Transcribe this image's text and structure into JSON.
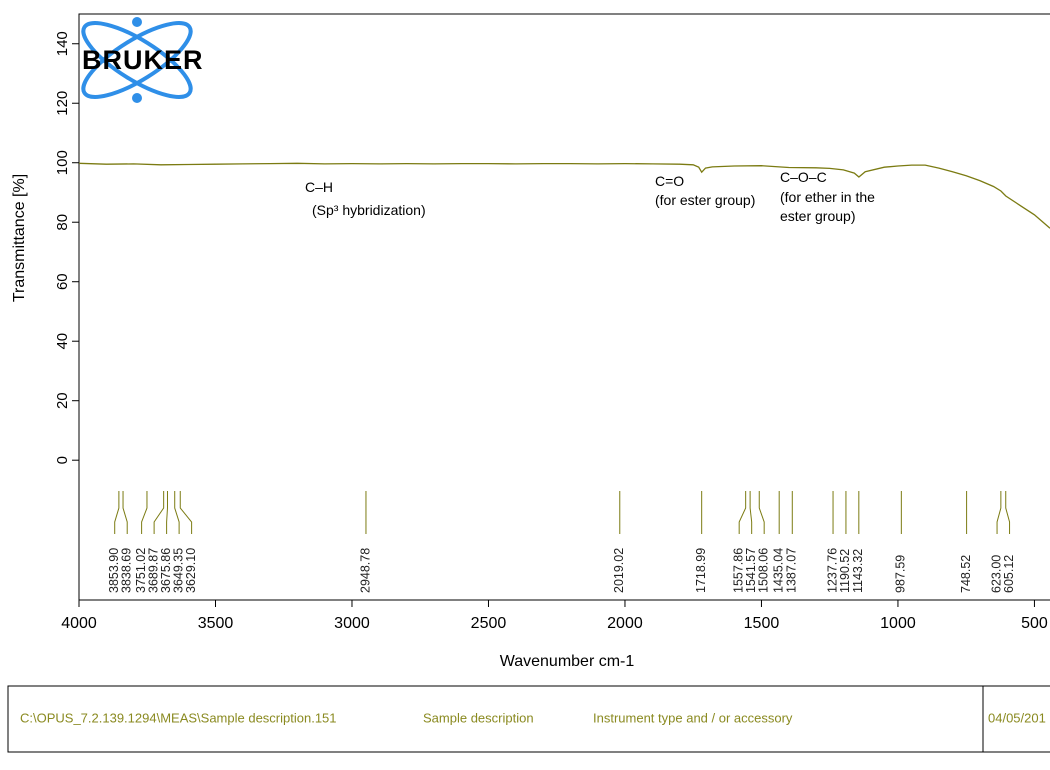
{
  "chart_data": {
    "type": "line",
    "xlabel": "Wavenumber cm-1",
    "ylabel": "Transmittance [%]",
    "color": "#7b7b12",
    "x": [
      4000,
      3900,
      3800,
      3700,
      3600,
      3500,
      3400,
      3300,
      3200,
      3100,
      3000,
      2900,
      2800,
      2700,
      2600,
      2500,
      2400,
      2300,
      2200,
      2100,
      2000,
      1900,
      1800,
      1750,
      1730,
      1719,
      1705,
      1680,
      1600,
      1500,
      1400,
      1300,
      1250,
      1200,
      1160,
      1143,
      1120,
      1050,
      1000,
      950,
      900,
      850,
      800,
      750,
      700,
      650,
      623,
      605,
      550,
      500,
      443
    ],
    "values": [
      99.8,
      99.5,
      99.6,
      99.3,
      99.4,
      99.5,
      99.6,
      99.7,
      99.8,
      99.6,
      99.7,
      99.6,
      99.7,
      99.6,
      99.7,
      99.7,
      99.6,
      99.7,
      99.7,
      99.6,
      99.7,
      99.6,
      99.5,
      99.3,
      98.5,
      96.8,
      98.2,
      98.6,
      98.9,
      99.0,
      98.4,
      98.3,
      98.1,
      97.6,
      96.5,
      95.2,
      97.0,
      98.5,
      98.9,
      99.2,
      99.2,
      98.2,
      97.0,
      95.6,
      94.0,
      92.0,
      90.5,
      88.8,
      85.5,
      82.5,
      78.0
    ],
    "xlim": [
      4000,
      443
    ],
    "ylim": [
      -47,
      150
    ],
    "xticks": [
      4000,
      3500,
      3000,
      2500,
      2000,
      1500,
      1000,
      500
    ],
    "yticks": [
      0,
      20,
      40,
      60,
      80,
      100,
      120,
      140
    ],
    "peaks": [
      {
        "value": 3853.9,
        "label": "3853.90"
      },
      {
        "value": 3838.69,
        "label": "3838.69"
      },
      {
        "value": 3751.02,
        "label": "3751.02"
      },
      {
        "value": 3689.87,
        "label": "3689.87"
      },
      {
        "value": 3675.86,
        "label": "3675.86"
      },
      {
        "value": 3649.35,
        "label": "3649.35"
      },
      {
        "value": 3629.1,
        "label": "3629.10"
      },
      {
        "value": 2948.78,
        "label": "2948.78"
      },
      {
        "value": 2019.02,
        "label": "2019.02"
      },
      {
        "value": 1718.99,
        "label": "1718.99"
      },
      {
        "value": 1557.86,
        "label": "1557.86"
      },
      {
        "value": 1541.57,
        "label": "1541.57"
      },
      {
        "value": 1508.06,
        "label": "1508.06"
      },
      {
        "value": 1435.04,
        "label": "1435.04"
      },
      {
        "value": 1387.07,
        "label": "1387.07"
      },
      {
        "value": 1237.76,
        "label": "1237.76"
      },
      {
        "value": 1190.52,
        "label": "1190.52"
      },
      {
        "value": 1143.32,
        "label": "1143.32"
      },
      {
        "value": 987.59,
        "label": "987.59"
      },
      {
        "value": 748.52,
        "label": "748.52"
      },
      {
        "value": 623,
        "label": "623.00"
      },
      {
        "value": 605.12,
        "label": "605.12"
      }
    ],
    "annotations": [
      "C–H",
      "(Sp³ hybridization)",
      "C=O",
      "(for ester group)",
      "C–O–C",
      "(for ether in the",
      "ester group)"
    ],
    "brand": "BRUKER"
  },
  "footer": {
    "file": "C:\\OPUS_7.2.139.1294\\MEAS\\Sample description.151",
    "sample": "Sample description",
    "instrument": "Instrument type and / or accessory",
    "date": "04/05/201"
  }
}
